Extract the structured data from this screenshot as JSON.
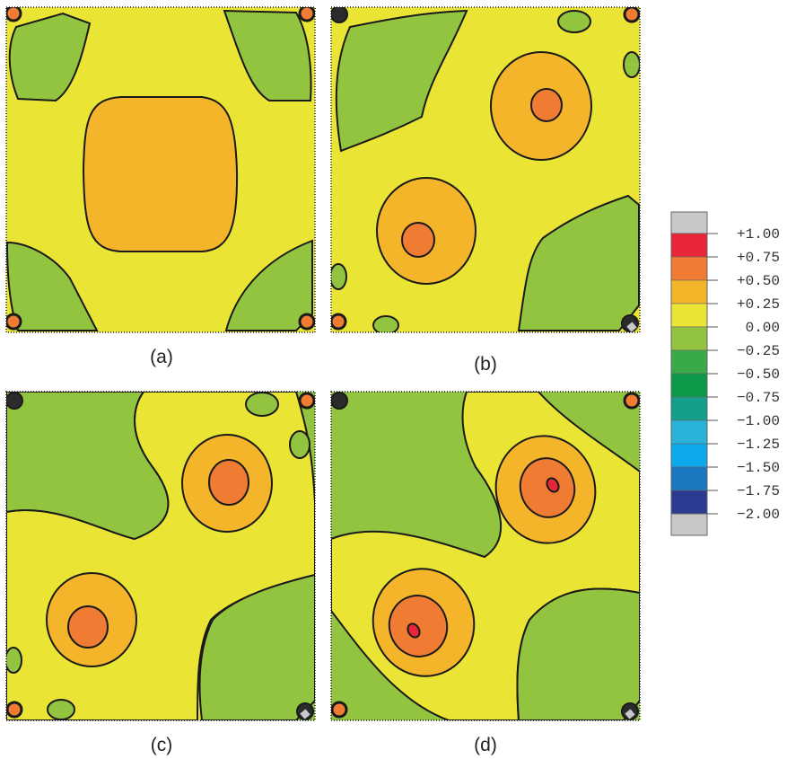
{
  "panels": [
    {
      "label": "(a)"
    },
    {
      "label": "(b)"
    },
    {
      "label": "(c)"
    },
    {
      "label": "(d)"
    }
  ],
  "colors": {
    "over": "#c8c8c8",
    "under": "#c8c8c8",
    "contour_line": "#1a1a1a"
  },
  "legend": {
    "levels": [
      "+1.00",
      "+0.75",
      "+0.50",
      "+0.25",
      "0.00",
      "−0.25",
      "−0.50",
      "−0.75",
      "−1.00",
      "−1.25",
      "−1.50",
      "−1.75",
      "−2.00"
    ],
    "bands": [
      {
        "color": "#e8263a"
      },
      {
        "color": "#f07c34"
      },
      {
        "color": "#f4b52a"
      },
      {
        "color": "#eae535"
      },
      {
        "color": "#93c440"
      },
      {
        "color": "#3aa94a"
      },
      {
        "color": "#0c9a4a"
      },
      {
        "color": "#14a088"
      },
      {
        "color": "#29b3d8"
      },
      {
        "color": "#0da9ec"
      },
      {
        "color": "#1a78c0"
      },
      {
        "color": "#2c3a91"
      }
    ]
  }
}
